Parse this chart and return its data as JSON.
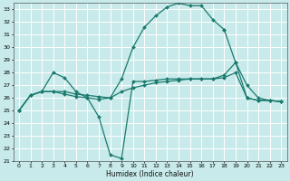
{
  "bg_color": "#c8eaea",
  "grid_color": "#ffffff",
  "line_color": "#1a7a6e",
  "xlabel": "Humidex (Indice chaleur)",
  "xlim": [
    -0.5,
    23.5
  ],
  "ylim": [
    21,
    33.5
  ],
  "xticks": [
    0,
    1,
    2,
    3,
    4,
    5,
    6,
    7,
    8,
    9,
    10,
    11,
    12,
    13,
    14,
    15,
    16,
    17,
    18,
    19,
    20,
    21,
    22,
    23
  ],
  "yticks": [
    21,
    22,
    23,
    24,
    25,
    26,
    27,
    28,
    29,
    30,
    31,
    32,
    33
  ],
  "lines": [
    {
      "x": [
        0,
        1,
        2,
        3,
        4,
        5,
        6,
        7,
        8,
        9,
        10,
        11,
        12,
        13,
        14,
        15,
        16,
        17,
        18
      ],
      "y": [
        25,
        26.2,
        26.5,
        26.5,
        26.5,
        26.3,
        26.2,
        26.1,
        26.0,
        27.5,
        30.0,
        31.6,
        32.5,
        33.2,
        33.5,
        33.3,
        33.3,
        32.2,
        31.4
      ]
    },
    {
      "x": [
        0,
        1,
        2,
        3,
        4,
        5,
        6,
        7,
        8,
        9,
        10,
        11,
        12,
        13,
        14,
        15,
        16,
        17,
        18,
        19,
        20,
        21,
        22,
        23
      ],
      "y": [
        25,
        26.2,
        26.5,
        28.0,
        27.6,
        26.5,
        26.0,
        24.5,
        21.5,
        21.2,
        27.3,
        27.3,
        27.4,
        27.5,
        27.5,
        27.5,
        27.5,
        27.5,
        27.8,
        28.8,
        26.0,
        25.8,
        25.8,
        25.7
      ]
    },
    {
      "x": [
        0,
        1,
        2,
        3,
        4,
        5,
        6,
        7,
        8,
        9,
        10,
        11,
        12,
        13,
        14,
        15,
        16,
        17,
        18,
        19,
        20,
        21,
        22,
        23
      ],
      "y": [
        25,
        26.2,
        26.5,
        26.5,
        26.3,
        26.1,
        26.0,
        25.9,
        26.0,
        26.5,
        26.8,
        27.0,
        27.2,
        27.3,
        27.4,
        27.5,
        27.5,
        27.5,
        27.6,
        28.0,
        26.0,
        25.8,
        25.8,
        25.7
      ]
    },
    {
      "x": [
        18,
        19,
        20,
        21,
        22,
        23
      ],
      "y": [
        31.4,
        28.8,
        27.0,
        26.0,
        25.8,
        25.7
      ]
    }
  ]
}
